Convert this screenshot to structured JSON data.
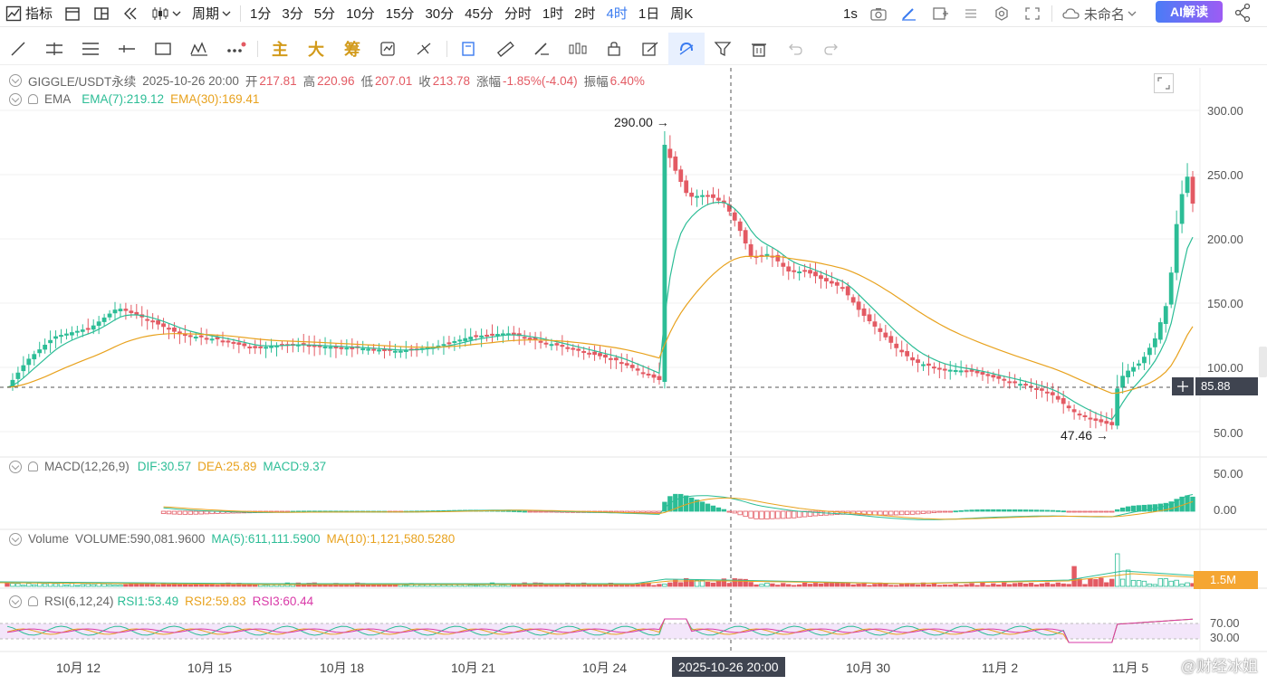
{
  "toolbar": {
    "indicator_label": "指标",
    "period_label": "周期",
    "periods": [
      "1分",
      "3分",
      "5分",
      "10分",
      "15分",
      "30分",
      "45分",
      "分时",
      "1时",
      "2时",
      "4时",
      "1日",
      "周K"
    ],
    "active_period": "4时",
    "interval_1s": "1s",
    "layout_name": "未命名",
    "ai_label": "AI解读"
  },
  "draw_tools": {
    "main": "主",
    "big": "大",
    "chip": "筹"
  },
  "info": {
    "symbol": "GIGGLE/USDT永续",
    "datetime": "2025-10-26 20:00",
    "open_label": "开",
    "open": "217.81",
    "high_label": "高",
    "high": "220.96",
    "low_label": "低",
    "low": "207.01",
    "close_label": "收",
    "close": "213.78",
    "change_label": "涨幅",
    "change": "-1.85%(-4.04)",
    "amplitude_label": "振幅",
    "amplitude": "6.40%"
  },
  "ema": {
    "name": "EMA",
    "ema7": "EMA(7):219.12",
    "ema30": "EMA(30):169.41"
  },
  "macd": {
    "name": "MACD(12,26,9)",
    "dif": "DIF:30.57",
    "dea": "DEA:25.89",
    "macd": "MACD:9.37"
  },
  "volume": {
    "name": "Volume",
    "vol": "VOLUME:590,081.9600",
    "ma5": "MA(5):611,111.5900",
    "ma10": "MA(10):1,121,580.5280"
  },
  "rsi": {
    "name": "RSI(6,12,24)",
    "rsi1": "RSI1:53.49",
    "rsi2": "RSI2:59.83",
    "rsi3": "RSI3:60.44"
  },
  "price_axis": [
    "300.00",
    "250.00",
    "200.00",
    "150.00",
    "100.00",
    "50.00"
  ],
  "macd_axis": [
    "50.00",
    "0.00"
  ],
  "rsi_axis": [
    "70.00",
    "30.00"
  ],
  "current_price": "85.88",
  "volume_tag": "1.5M",
  "annotations": {
    "high": "290.00",
    "low": "47.46"
  },
  "x_labels": [
    "10月 12",
    "10月 15",
    "10月 18",
    "10月 21",
    "10月 24",
    "10月 30",
    "11月 2",
    "11月 5"
  ],
  "crosshair_date": "2025-10-26 20:00",
  "watermark": "@财经冰姐",
  "colors": {
    "up": "#2cbd96",
    "down": "#e35a63",
    "ema7": "#2cbd96",
    "ema30": "#e8a21e",
    "accent": "#3a7bf0"
  }
}
